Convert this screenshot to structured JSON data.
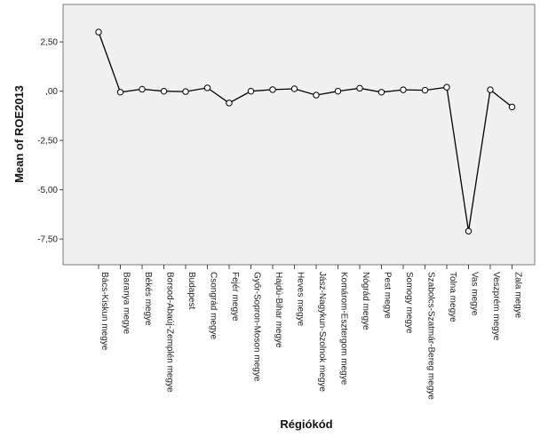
{
  "chart_data": {
    "type": "line",
    "xlabel": "Régiókód",
    "ylabel": "Mean of ROE2013",
    "ylim": [
      -8.8,
      4.4
    ],
    "yticks": [
      2.5,
      0,
      -2.5,
      -5,
      -7.5
    ],
    "ytick_labels": [
      "2,50",
      ",00",
      "-2,50",
      "-5,00",
      "-7,50"
    ],
    "grid": false,
    "colors": {
      "plot_background": "#f0f0f0",
      "line": "#000000",
      "marker_fill": "#ffffff"
    },
    "categories": [
      "Bács-Kiskun megye",
      "Baranya megye",
      "Békés megye",
      "Borsod-Abaúj-Zemplén megye",
      "Budapest",
      "Csongrád megye",
      "Fejér megye",
      "Győr-Sopron-Moson megye",
      "Hajdú-Bihar megye",
      "Heves megye",
      "Jász-Nagykun-Szolnok megye",
      "Komárom-Esztergom megye",
      "Nógrád megye",
      "Pest megye",
      "Somogy megye",
      "Szabolcs-Szatmár-Bereg megye",
      "Tolna megye",
      "Vas megye",
      "Veszprém megye",
      "Zala megye"
    ],
    "series": [
      {
        "values": [
          3.0,
          -0.05,
          0.1,
          0.0,
          -0.02,
          0.17,
          -0.6,
          0.0,
          0.08,
          0.12,
          -0.2,
          0.0,
          0.15,
          -0.05,
          0.07,
          0.05,
          0.2,
          -7.1,
          0.07,
          -0.8
        ]
      }
    ]
  }
}
